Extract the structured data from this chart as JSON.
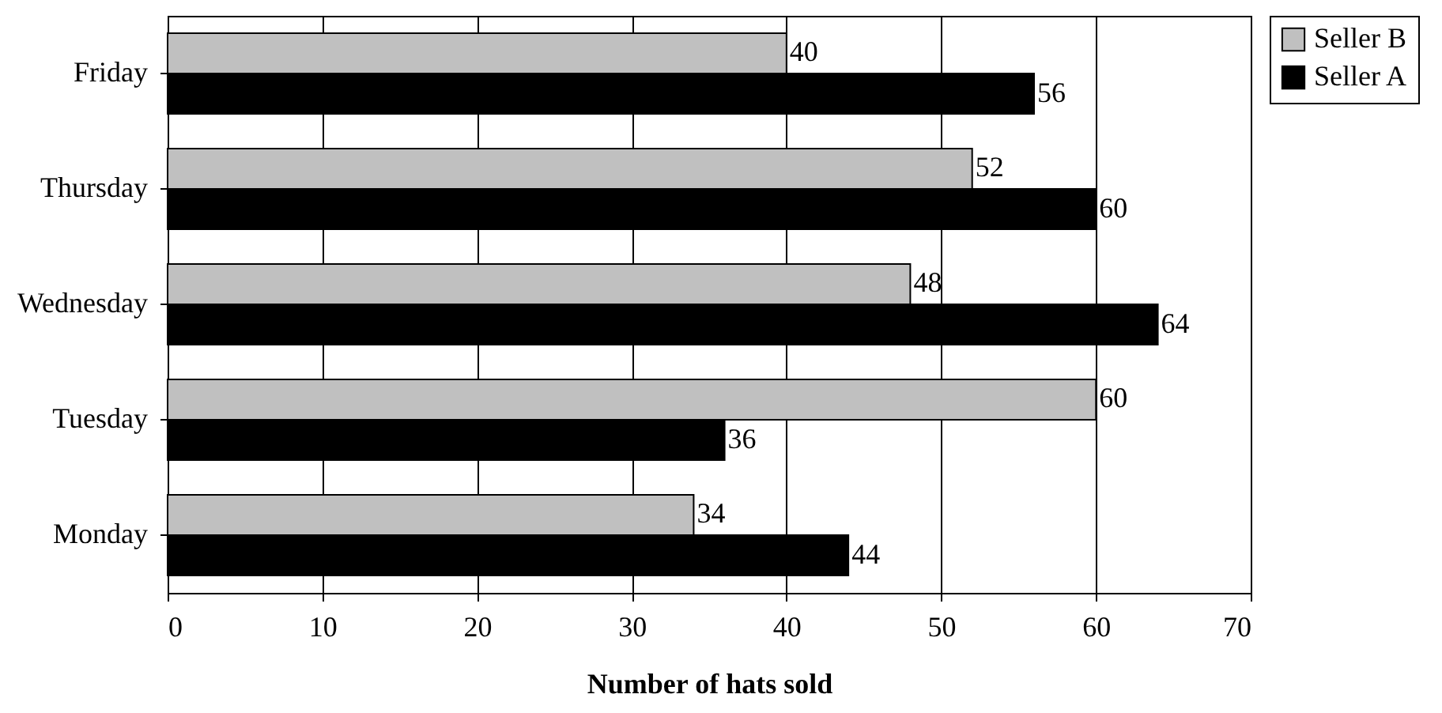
{
  "chart_data": {
    "type": "bar",
    "orientation": "horizontal",
    "xlabel": "Number of hats sold",
    "categories": [
      "Friday",
      "Thursday",
      "Wednesday",
      "Tuesday",
      "Monday"
    ],
    "series": [
      {
        "name": "Seller B",
        "color": "#c0c0c0",
        "values": [
          40,
          52,
          48,
          60,
          34
        ]
      },
      {
        "name": "Seller A",
        "color": "#000000",
        "values": [
          56,
          60,
          64,
          36,
          44
        ]
      }
    ],
    "xlim": [
      0,
      70
    ],
    "xticks": [
      0,
      10,
      20,
      30,
      40,
      50,
      60,
      70
    ],
    "grid": "x",
    "legend": "right",
    "data_labels": true
  }
}
